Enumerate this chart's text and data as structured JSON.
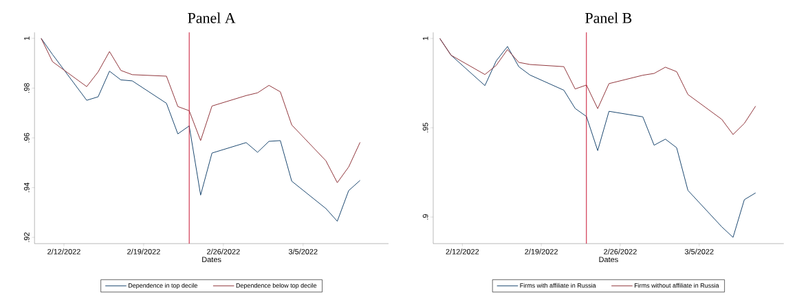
{
  "chart_data": [
    {
      "type": "line",
      "title": "Panel A",
      "xlabel": "Dates",
      "x": [
        "2022-02-10",
        "2022-02-11",
        "2022-02-14",
        "2022-02-15",
        "2022-02-16",
        "2022-02-17",
        "2022-02-18",
        "2022-02-21",
        "2022-02-22",
        "2022-02-23",
        "2022-02-24",
        "2022-02-25",
        "2022-02-28",
        "2022-03-01",
        "2022-03-02",
        "2022-03-03",
        "2022-03-04",
        "2022-03-07",
        "2022-03-08",
        "2022-03-09",
        "2022-03-10"
      ],
      "series": [
        {
          "name": "Dependence in top decile",
          "color": "#1a476f",
          "values": [
            1,
            0.9935,
            0.9751,
            0.9765,
            0.9868,
            0.9833,
            0.9829,
            0.9739,
            0.9616,
            0.9648,
            0.937,
            0.9539,
            0.9581,
            0.9542,
            0.9586,
            0.9589,
            0.9426,
            0.9316,
            0.9265,
            0.9388,
            0.9429
          ]
        },
        {
          "name": "Dependence below top decile",
          "color": "#90353b",
          "values": [
            1,
            0.9906,
            0.9806,
            0.9865,
            0.9947,
            0.9871,
            0.9854,
            0.9848,
            0.9726,
            0.9709,
            0.9589,
            0.9728,
            0.977,
            0.9781,
            0.9811,
            0.9785,
            0.9652,
            0.9508,
            0.942,
            0.9483,
            0.9582
          ]
        }
      ],
      "xlim": [
        "2022-02-09T10:00",
        "2022-03-12T12:00"
      ],
      "xticks": [
        {
          "value": "2022-02-12",
          "label": "2/12/2022"
        },
        {
          "value": "2022-02-19",
          "label": "2/19/2022"
        },
        {
          "value": "2022-02-26",
          "label": "2/26/2022"
        },
        {
          "value": "2022-03-05",
          "label": "3/5/2022"
        }
      ],
      "ylim": [
        0.9175,
        1.0024
      ],
      "yticks": [
        {
          "value": 0.92,
          "label": ".92"
        },
        {
          "value": 0.94,
          "label": ".94"
        },
        {
          "value": 0.96,
          "label": ".96"
        },
        {
          "value": 0.98,
          "label": ".98"
        },
        1
      ],
      "ref_lines": [
        {
          "axis": "x",
          "value": "2022-02-23",
          "color": "#c8102e"
        }
      ],
      "legend": "bottom",
      "grid": false,
      "marker": "none",
      "line_style": "solid"
    },
    {
      "type": "line",
      "title": "Panel B",
      "xlabel": "Dates",
      "x": [
        "2022-02-10",
        "2022-02-11",
        "2022-02-14",
        "2022-02-15",
        "2022-02-16",
        "2022-02-17",
        "2022-02-18",
        "2022-02-21",
        "2022-02-22",
        "2022-02-23",
        "2022-02-24",
        "2022-02-25",
        "2022-02-28",
        "2022-03-01",
        "2022-03-02",
        "2022-03-03",
        "2022-03-04",
        "2022-03-07",
        "2022-03-08",
        "2022-03-09",
        "2022-03-10"
      ],
      "series": [
        {
          "name": "Firms with affiliate in Russia",
          "color": "#1a476f",
          "values": [
            1,
            0.9906,
            0.9736,
            0.9874,
            0.9955,
            0.9842,
            0.9795,
            0.971,
            0.9608,
            0.9563,
            0.9372,
            0.9592,
            0.9561,
            0.9402,
            0.9436,
            0.9388,
            0.9149,
            0.8945,
            0.8886,
            0.9097,
            0.9135
          ]
        },
        {
          "name": "Firms without affiliate in Russia",
          "color": "#90353b",
          "values": [
            1,
            0.9906,
            0.9798,
            0.9849,
            0.9938,
            0.9866,
            0.9854,
            0.9842,
            0.9717,
            0.9739,
            0.9607,
            0.9747,
            0.9794,
            0.9804,
            0.9839,
            0.9814,
            0.9686,
            0.9547,
            0.9462,
            0.9524,
            0.9621
          ]
        }
      ],
      "xlim": [
        "2022-02-09T10:00",
        "2022-03-12T12:00"
      ],
      "xticks": [
        {
          "value": "2022-02-12",
          "label": "2/12/2022"
        },
        {
          "value": "2022-02-19",
          "label": "2/19/2022"
        },
        {
          "value": "2022-02-26",
          "label": "2/26/2022"
        },
        {
          "value": "2022-03-05",
          "label": "3/5/2022"
        }
      ],
      "ylim": [
        0.8851,
        1.0034
      ],
      "yticks": [
        {
          "value": 0.9,
          "label": ".9"
        },
        {
          "value": 0.95,
          "label": ".95"
        },
        1
      ],
      "ref_lines": [
        {
          "axis": "x",
          "value": "2022-02-23",
          "color": "#c8102e"
        }
      ],
      "legend": "bottom",
      "grid": false,
      "marker": "none",
      "line_style": "solid"
    }
  ]
}
